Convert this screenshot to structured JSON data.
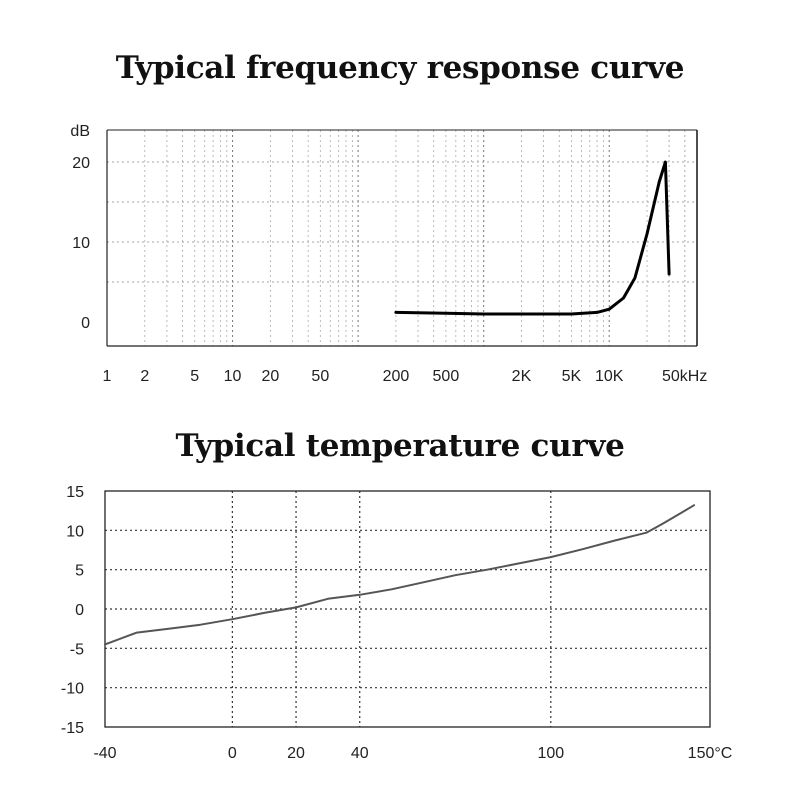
{
  "chart_data": [
    {
      "type": "line",
      "title": "Typical frequency response curve",
      "xlabel": "",
      "ylabel": "dB",
      "x_scale": "log",
      "xlim": [
        1,
        50000
      ],
      "ylim": [
        -3,
        24
      ],
      "x_tick_labels": [
        "1",
        "2",
        "5",
        "10",
        "20",
        "50",
        "200",
        "500",
        "2K",
        "5K",
        "10K",
        "50kHz"
      ],
      "x_tick_values": [
        1,
        2,
        5,
        10,
        20,
        50,
        200,
        500,
        2000,
        5000,
        10000,
        50000
      ],
      "y_tick_labels": [
        "dB",
        "20",
        "10",
        "0"
      ],
      "y_tick_values": [
        24,
        20,
        10,
        0
      ],
      "grid": true,
      "series": [
        {
          "x": [
            200,
            500,
            1000,
            2000,
            5000,
            8000,
            10000,
            13000,
            16000,
            20000,
            25000,
            28000,
            30000
          ],
          "y": [
            1.2,
            1.1,
            1.0,
            1.0,
            1.0,
            1.2,
            1.6,
            3.0,
            5.5,
            11.0,
            17.5,
            20.0,
            6.0
          ]
        }
      ]
    },
    {
      "type": "line",
      "title": "Typical temperature curve",
      "xlabel": "",
      "ylabel": "",
      "xlim": [
        -40,
        150
      ],
      "ylim": [
        -15,
        15
      ],
      "x_tick_labels": [
        "-40",
        "0",
        "20",
        "40",
        "100",
        "150°C"
      ],
      "x_tick_values": [
        -40,
        0,
        20,
        40,
        100,
        150
      ],
      "y_tick_labels": [
        "15",
        "10",
        "5",
        "0",
        "-5",
        "-10",
        "-15"
      ],
      "y_tick_values": [
        15,
        10,
        5,
        0,
        -5,
        -10,
        -15
      ],
      "grid": true,
      "series": [
        {
          "x": [
            -40,
            -30,
            -20,
            -10,
            0,
            10,
            20,
            30,
            40,
            50,
            60,
            70,
            80,
            90,
            100,
            110,
            120,
            130,
            135,
            140,
            145
          ],
          "y": [
            -4.5,
            -3.0,
            -2.5,
            -2.0,
            -1.3,
            -0.5,
            0.2,
            1.3,
            1.8,
            2.5,
            3.4,
            4.3,
            5.0,
            5.8,
            6.6,
            7.6,
            8.7,
            9.7,
            10.8,
            12.0,
            13.2
          ]
        }
      ]
    }
  ]
}
